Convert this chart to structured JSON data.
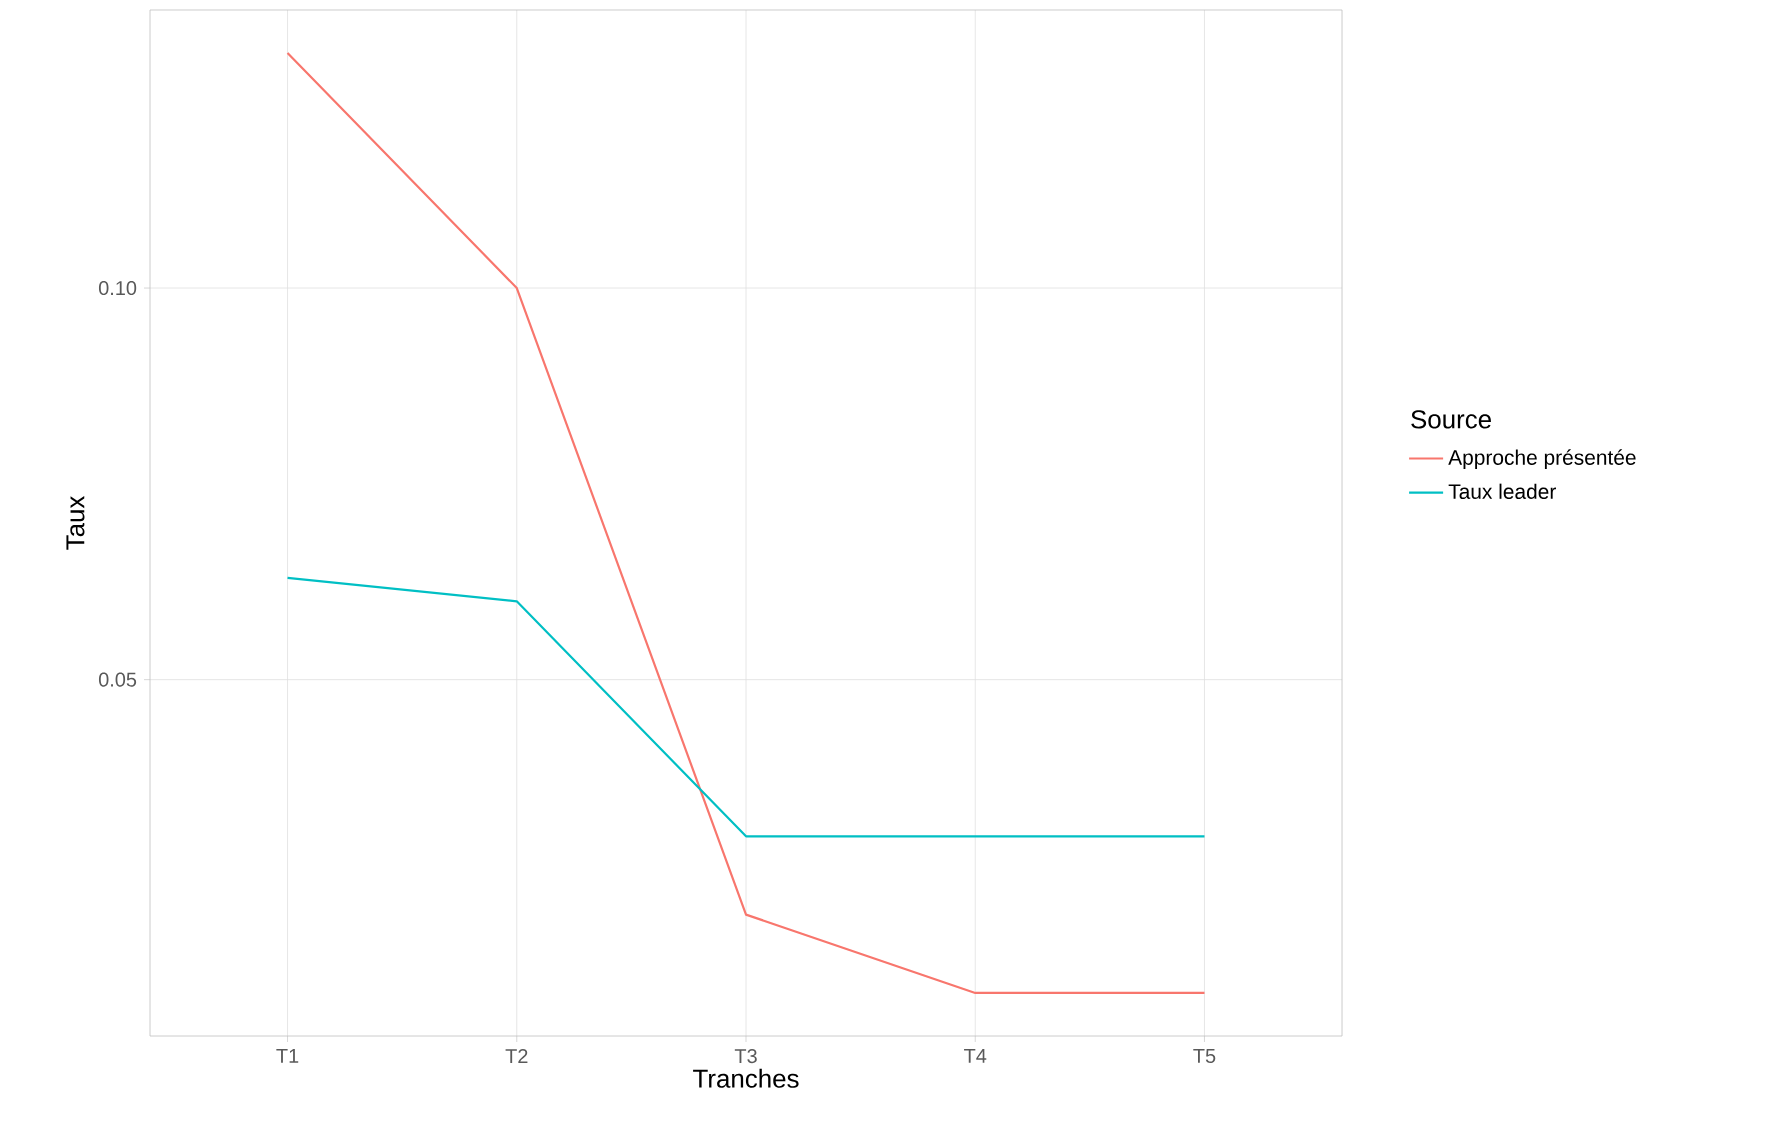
{
  "chart_data": {
    "type": "line",
    "xlabel": "Tranches",
    "ylabel": "Taux",
    "legend_title": "Source",
    "categories": [
      "T1",
      "T2",
      "T3",
      "T4",
      "T5"
    ],
    "series": [
      {
        "name": "Approche présentée",
        "color": "#f8766d",
        "values": [
          0.13,
          0.1,
          0.02,
          0.01,
          0.01
        ]
      },
      {
        "name": "Taux leader",
        "color": "#00bfc4",
        "values": [
          0.063,
          0.06,
          0.03,
          0.03,
          0.03
        ]
      }
    ],
    "ylim": [
      0.0045,
      0.1355
    ],
    "yticks": [
      0.05,
      {
        "value": 0.1,
        "label": "0.10"
      }
    ],
    "grid": true,
    "legend": "right",
    "marker": "none",
    "line_style": "solid"
  }
}
